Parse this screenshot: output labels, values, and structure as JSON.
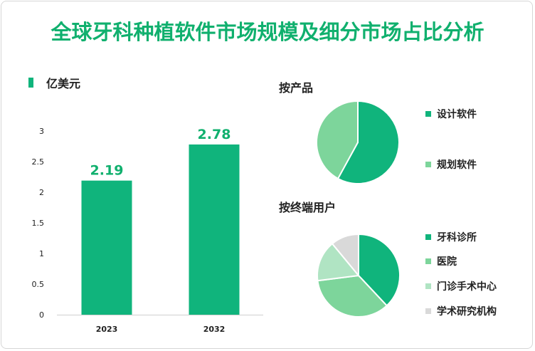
{
  "title": "全球牙科种植软件市场规模及细分市场占比分析",
  "unit_label": "亿美元",
  "colors": {
    "title": "#10b06e",
    "bar": "#10b47c",
    "dark": "#10b47c",
    "medium": "#7dd59b",
    "light": "#b0e4c3",
    "gray": "#d9d9d9"
  },
  "chart_data": [
    {
      "type": "bar",
      "categories": [
        "2023",
        "2032"
      ],
      "values": [
        2.19,
        2.78
      ],
      "data_labels": [
        "2.19",
        "2.78"
      ],
      "ylim": [
        0,
        3
      ],
      "yticks": [
        "0",
        "0.5",
        "1",
        "1.5",
        "2",
        "2.5",
        "3"
      ],
      "ylabel": "亿美元",
      "grid": false
    },
    {
      "type": "pie",
      "title": "按产品",
      "labels": [
        "设计软件",
        "规划软件"
      ],
      "values": [
        58,
        42
      ],
      "colors": [
        "#10b47c",
        "#7dd59b"
      ],
      "legend": "right"
    },
    {
      "type": "pie",
      "title": "按终端用户",
      "labels": [
        "牙科诊所",
        "医院",
        "门诊手术中心",
        "学术研究机构"
      ],
      "values": [
        38,
        35,
        16,
        11
      ],
      "colors": [
        "#10b47c",
        "#7dd59b",
        "#b0e4c3",
        "#d9d9d9"
      ],
      "legend": "right"
    }
  ]
}
